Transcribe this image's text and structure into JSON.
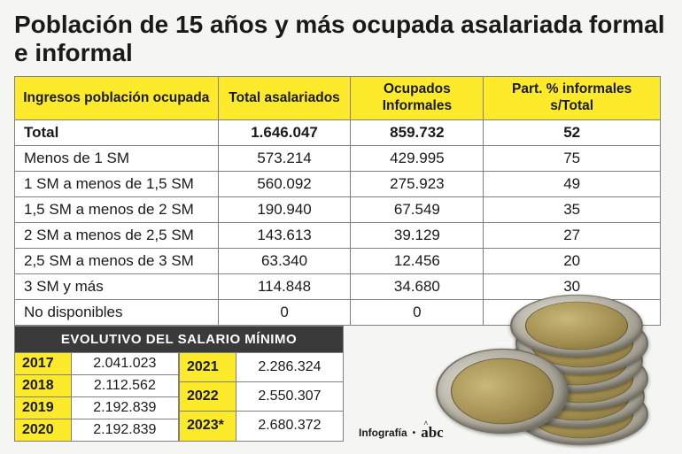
{
  "title": "Población de 15 años y más ocupada asalariada formal e informal",
  "main_table": {
    "columns": [
      "Ingresos población ocupada",
      "Total asalariados",
      "Ocupados Informales",
      "Part. % informales s/Total"
    ],
    "total_row": {
      "label": "Total",
      "total": "1.646.047",
      "informal": "859.732",
      "pct": "52"
    },
    "rows": [
      {
        "label": "Menos de 1 SM",
        "total": "573.214",
        "informal": "429.995",
        "pct": "75"
      },
      {
        "label": "1 SM a menos de 1,5 SM",
        "total": "560.092",
        "informal": "275.923",
        "pct": "49"
      },
      {
        "label": "1,5 SM a menos de 2 SM",
        "total": "190.940",
        "informal": "67.549",
        "pct": "35"
      },
      {
        "label": "2 SM a menos de 2,5 SM",
        "total": "143.613",
        "informal": "39.129",
        "pct": "27"
      },
      {
        "label": "2,5 SM a menos de 3 SM",
        "total": "63.340",
        "informal": "12.456",
        "pct": "20"
      },
      {
        "label": "3 SM y más",
        "total": "114.848",
        "informal": "34.680",
        "pct": "30"
      },
      {
        "label": "No disponibles",
        "total": "0",
        "informal": "0",
        "pct": ""
      }
    ],
    "header_bg": "#fcea2b",
    "border_color": "#808080"
  },
  "evo": {
    "title": "EVOLUTIVO DEL SALARIO MÍNIMO",
    "left": [
      {
        "year": "2017",
        "value": "2.041.023"
      },
      {
        "year": "2018",
        "value": "2.112.562"
      },
      {
        "year": "2019",
        "value": "2.192.839"
      },
      {
        "year": "2020",
        "value": "2.192.839"
      }
    ],
    "right": [
      {
        "year": "2021",
        "value": "2.286.324"
      },
      {
        "year": "2022",
        "value": "2.550.307"
      },
      {
        "year": "2023*",
        "value": "2.680.372"
      }
    ],
    "title_bg": "#3a3a3a",
    "year_bg": "#fcea2b"
  },
  "credit": {
    "label": "Infografía",
    "sep": "•",
    "logo": "abc"
  },
  "styling": {
    "page_bg": "#f5f5f3",
    "title_fontsize": 28,
    "table_fontsize": 17,
    "evo_fontsize": 16
  }
}
